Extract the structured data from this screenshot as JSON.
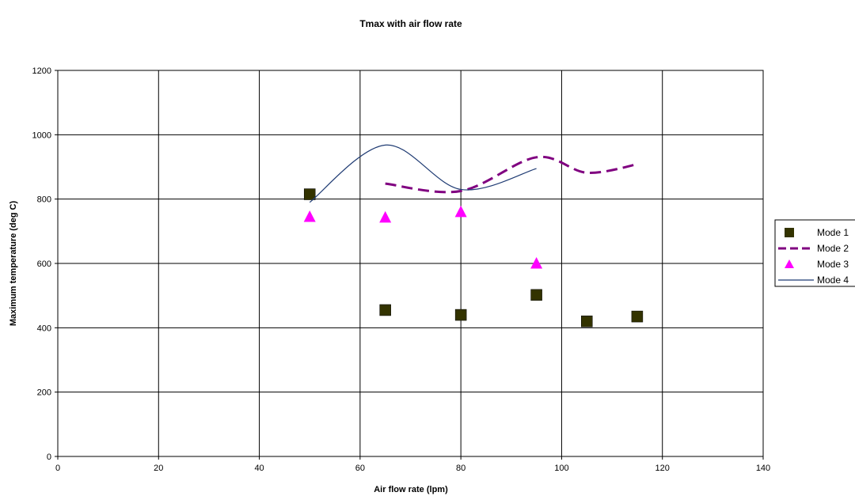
{
  "chart_data": {
    "type": "scatter",
    "title": "Tmax with air flow rate",
    "xlabel": "Air flow rate (lpm)",
    "ylabel": "Maximum temperature (deg C)",
    "xlim": [
      0,
      140
    ],
    "ylim": [
      0,
      1200
    ],
    "x_ticks": [
      0,
      20,
      40,
      60,
      80,
      100,
      120,
      140
    ],
    "y_ticks": [
      0,
      200,
      400,
      600,
      800,
      1000,
      1200
    ],
    "grid": true,
    "legend_position": "right",
    "series": [
      {
        "name": "Mode 1",
        "style": "square-marker",
        "color": "#333300",
        "points": [
          [
            50,
            815
          ],
          [
            65,
            455
          ],
          [
            80,
            440
          ],
          [
            95,
            502
          ],
          [
            105,
            420
          ],
          [
            115,
            435
          ]
        ]
      },
      {
        "name": "Mode 2",
        "style": "dashed-smooth-line",
        "color": "#800080",
        "points": [
          [
            65,
            848
          ],
          [
            80,
            825
          ],
          [
            95,
            930
          ],
          [
            105,
            882
          ],
          [
            115,
            908
          ]
        ]
      },
      {
        "name": "Mode 3",
        "style": "triangle-marker",
        "color": "#ff00ff",
        "points": [
          [
            50,
            745
          ],
          [
            65,
            743
          ],
          [
            80,
            760
          ],
          [
            95,
            600
          ]
        ]
      },
      {
        "name": "Mode 4",
        "style": "smooth-line",
        "color": "#1f3b73",
        "points": [
          [
            50,
            790
          ],
          [
            65,
            968
          ],
          [
            80,
            830
          ],
          [
            95,
            895
          ]
        ]
      }
    ]
  }
}
